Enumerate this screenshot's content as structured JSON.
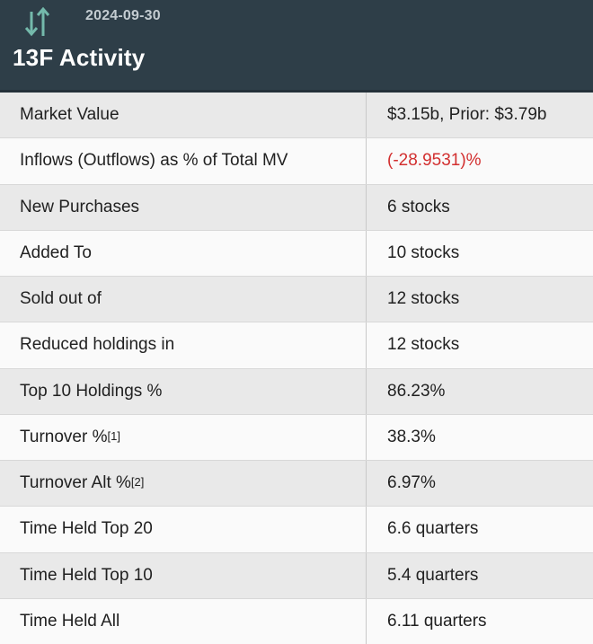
{
  "header": {
    "date": "2024-09-30",
    "title": "13F Activity",
    "icon": "up-down-arrows-icon"
  },
  "colors": {
    "header_bg": "#2e3e48",
    "header_border": "#25313a",
    "title_color": "#ffffff",
    "date_color": "#c3ccd1",
    "icon_color": "#74b9ab",
    "row_stripe_bg": "#e9e9e9",
    "row_plain_bg": "#fafafa",
    "row_divider": "#d8d8d8",
    "column_divider": "#c9c9c9",
    "text_color": "#212121",
    "negative_value_color": "#d22f2f"
  },
  "table": {
    "rows": [
      {
        "label": "Market Value",
        "sup": "",
        "value": "$3.15b, Prior: $3.79b",
        "negative": false
      },
      {
        "label": "Inflows (Outflows) as % of Total MV",
        "sup": "",
        "value": "(-28.9531)%",
        "negative": true
      },
      {
        "label": "New Purchases",
        "sup": "",
        "value": "6 stocks",
        "negative": false
      },
      {
        "label": "Added To",
        "sup": "",
        "value": "10 stocks",
        "negative": false
      },
      {
        "label": "Sold out of",
        "sup": "",
        "value": "12 stocks",
        "negative": false
      },
      {
        "label": "Reduced holdings in",
        "sup": "",
        "value": "12 stocks",
        "negative": false
      },
      {
        "label": "Top 10 Holdings %",
        "sup": "",
        "value": "86.23%",
        "negative": false
      },
      {
        "label": "Turnover %",
        "sup": "[1]",
        "value": "38.3%",
        "negative": false
      },
      {
        "label": "Turnover Alt %",
        "sup": "[2]",
        "value": "6.97%",
        "negative": false
      },
      {
        "label": "Time Held Top 20",
        "sup": "",
        "value": "6.6 quarters",
        "negative": false
      },
      {
        "label": "Time Held Top 10",
        "sup": "",
        "value": "5.4 quarters",
        "negative": false
      },
      {
        "label": "Time Held All",
        "sup": "",
        "value": "6.11 quarters",
        "negative": false
      }
    ]
  }
}
